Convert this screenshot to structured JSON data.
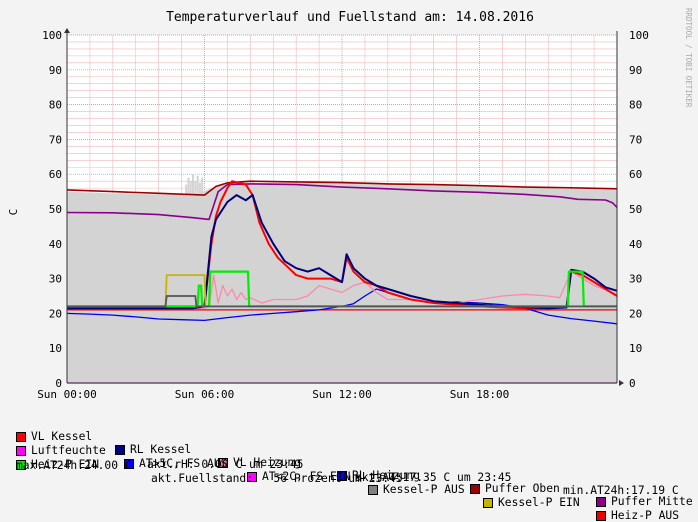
{
  "title": "Temperaturverlauf und Fuellstand am: 14.08.2016",
  "watermark": "RRDTOOL / TOBI OETIKER",
  "colors": {
    "background": "#f3f3f3",
    "plot_area": "#ffffff",
    "grid_minor": "#f2b8b8",
    "grid_major": "#e07a7a",
    "axis": "#333333"
  },
  "chart_data": {
    "type": "line",
    "ylabel": "C",
    "ylim": [
      0,
      100
    ],
    "yticks": [
      0,
      10,
      20,
      30,
      40,
      50,
      60,
      70,
      80,
      90,
      100
    ],
    "xlim": [
      0,
      24
    ],
    "xticks": [
      {
        "h": 0,
        "label": "Sun 00:00"
      },
      {
        "h": 6,
        "label": "Sun 06:00"
      },
      {
        "h": 12,
        "label": "Sun 12:00"
      },
      {
        "h": 18,
        "label": "Sun 18:00"
      }
    ],
    "fill_series": {
      "name": "Fuellstand",
      "color": "#d3d3d3",
      "points": [
        [
          0,
          55
        ],
        [
          2,
          54.5
        ],
        [
          4,
          54.2
        ],
        [
          5.5,
          53.8
        ],
        [
          6.3,
          56
        ],
        [
          6.9,
          57.5
        ],
        [
          8,
          57.6
        ],
        [
          12,
          57.5
        ],
        [
          16,
          56.8
        ],
        [
          20,
          56
        ],
        [
          24,
          55.5
        ]
      ]
    },
    "series": [
      {
        "name": "Puffer Oben",
        "color": "#9b0000",
        "width": 1.6,
        "points": [
          [
            0,
            55.5
          ],
          [
            2,
            55
          ],
          [
            4,
            54.5
          ],
          [
            6,
            54
          ],
          [
            6.5,
            56.5
          ],
          [
            7,
            57.5
          ],
          [
            8,
            58
          ],
          [
            10,
            57.8
          ],
          [
            12,
            57.6
          ],
          [
            14,
            57.2
          ],
          [
            16,
            57
          ],
          [
            18,
            56.7
          ],
          [
            20,
            56.3
          ],
          [
            22,
            56.1
          ],
          [
            24,
            55.8
          ]
        ]
      },
      {
        "name": "Puffer Mitte",
        "color": "#8b008b",
        "width": 1.6,
        "points": [
          [
            0,
            49
          ],
          [
            2,
            48.9
          ],
          [
            4,
            48.4
          ],
          [
            5.5,
            47.5
          ],
          [
            6.2,
            47
          ],
          [
            6.6,
            55
          ],
          [
            7,
            57
          ],
          [
            8,
            57.2
          ],
          [
            10,
            57
          ],
          [
            12,
            56.3
          ],
          [
            14,
            55.8
          ],
          [
            16,
            55.2
          ],
          [
            18,
            54.8
          ],
          [
            20,
            54.2
          ],
          [
            21.5,
            53.5
          ],
          [
            22.3,
            52.8
          ],
          [
            23.5,
            52.6
          ],
          [
            23.8,
            51.8
          ],
          [
            24,
            50.5
          ]
        ]
      },
      {
        "name": "Luftfeuchte",
        "color": "#ff00ff",
        "width": 1.2,
        "points": [
          [
            0,
            0
          ],
          [
            24,
            0
          ]
        ]
      },
      {
        "name": "Heiz-P AUS",
        "color": "#ee0000",
        "width": 1.2,
        "points": [
          [
            0,
            21
          ],
          [
            6,
            21
          ],
          [
            6.05,
            21
          ],
          [
            24,
            21
          ]
        ]
      },
      {
        "name": "RL Heizung",
        "color": "#0000ee",
        "width": 1.3,
        "points": [
          [
            0,
            20
          ],
          [
            1,
            19.8
          ],
          [
            2,
            19.5
          ],
          [
            3,
            19
          ],
          [
            4,
            18.4
          ],
          [
            5,
            18.2
          ],
          [
            6,
            18
          ],
          [
            7,
            18.8
          ],
          [
            8,
            19.5
          ],
          [
            9,
            20
          ],
          [
            10,
            20.5
          ],
          [
            11,
            21
          ],
          [
            12,
            22
          ],
          [
            12.5,
            22.8
          ],
          [
            13,
            25
          ],
          [
            13.5,
            27
          ],
          [
            14,
            26
          ],
          [
            14.5,
            25
          ],
          [
            15,
            24
          ],
          [
            16,
            23
          ],
          [
            17,
            23.3
          ],
          [
            18,
            23
          ],
          [
            19,
            22.5
          ],
          [
            20,
            21.5
          ],
          [
            21,
            19.5
          ],
          [
            22,
            18.5
          ],
          [
            23,
            17.8
          ],
          [
            24,
            17
          ]
        ]
      },
      {
        "name": "VL Heizung",
        "color": "#ff88aa",
        "width": 1.3,
        "points": [
          [
            0,
            21.5
          ],
          [
            6,
            21.5
          ],
          [
            6.2,
            22
          ],
          [
            6.4,
            31
          ],
          [
            6.6,
            23
          ],
          [
            6.8,
            28
          ],
          [
            7,
            25
          ],
          [
            7.2,
            27
          ],
          [
            7.4,
            24
          ],
          [
            7.6,
            26
          ],
          [
            7.8,
            24
          ],
          [
            8,
            24.5
          ],
          [
            8.5,
            23
          ],
          [
            9,
            24
          ],
          [
            10,
            24
          ],
          [
            10.5,
            25
          ],
          [
            11,
            28
          ],
          [
            11.5,
            27
          ],
          [
            12,
            26
          ],
          [
            12.5,
            28
          ],
          [
            13,
            29
          ],
          [
            13.5,
            26
          ],
          [
            14,
            24
          ],
          [
            15,
            24
          ],
          [
            16,
            23
          ],
          [
            17,
            23
          ],
          [
            18,
            24
          ],
          [
            19,
            25
          ],
          [
            20,
            25.5
          ],
          [
            21,
            25
          ],
          [
            21.5,
            24.5
          ],
          [
            22,
            32
          ],
          [
            22.5,
            30
          ],
          [
            23,
            28
          ],
          [
            24,
            25.5
          ]
        ]
      },
      {
        "name": "VL Kessel",
        "color": "#ff0000",
        "width": 2,
        "points": [
          [
            0,
            21.5
          ],
          [
            5.5,
            21.5
          ],
          [
            5.8,
            22
          ],
          [
            6,
            22
          ],
          [
            6.3,
            40
          ],
          [
            6.5,
            48
          ],
          [
            6.7,
            52
          ],
          [
            7,
            56
          ],
          [
            7.2,
            58
          ],
          [
            7.5,
            57.5
          ],
          [
            7.8,
            57
          ],
          [
            8.1,
            54
          ],
          [
            8.4,
            46
          ],
          [
            8.8,
            40
          ],
          [
            9.2,
            36
          ],
          [
            10,
            31
          ],
          [
            10.5,
            30
          ],
          [
            11,
            30
          ],
          [
            11.5,
            30
          ],
          [
            12,
            29
          ],
          [
            12.2,
            36
          ],
          [
            12.5,
            32
          ],
          [
            13,
            29
          ],
          [
            13.5,
            28
          ],
          [
            14,
            26
          ],
          [
            15,
            24
          ],
          [
            16,
            23
          ],
          [
            17,
            22.5
          ],
          [
            18,
            22
          ],
          [
            19,
            21.7
          ],
          [
            20,
            21.5
          ],
          [
            21,
            21.5
          ],
          [
            21.8,
            22
          ],
          [
            22,
            32
          ],
          [
            22.5,
            31
          ],
          [
            23,
            29
          ],
          [
            23.5,
            27
          ],
          [
            24,
            25
          ]
        ]
      },
      {
        "name": "RL Kessel",
        "color": "#00007a",
        "width": 2,
        "points": [
          [
            0,
            21.5
          ],
          [
            5.5,
            21.5
          ],
          [
            6,
            22
          ],
          [
            6.3,
            42
          ],
          [
            6.5,
            47
          ],
          [
            6.8,
            50
          ],
          [
            7,
            52
          ],
          [
            7.4,
            54
          ],
          [
            7.8,
            52.5
          ],
          [
            8.1,
            54
          ],
          [
            8.5,
            46
          ],
          [
            9,
            40
          ],
          [
            9.5,
            35
          ],
          [
            10,
            33
          ],
          [
            10.5,
            32
          ],
          [
            11,
            33
          ],
          [
            11.5,
            31
          ],
          [
            12,
            29
          ],
          [
            12.2,
            37
          ],
          [
            12.5,
            33
          ],
          [
            13,
            30
          ],
          [
            13.5,
            28
          ],
          [
            14,
            27
          ],
          [
            15,
            25
          ],
          [
            16,
            23.5
          ],
          [
            17,
            23
          ],
          [
            18,
            22.5
          ],
          [
            19,
            22
          ],
          [
            20,
            21.8
          ],
          [
            21,
            21.5
          ],
          [
            21.8,
            21.7
          ],
          [
            22,
            32.5
          ],
          [
            22.5,
            32
          ],
          [
            23,
            30
          ],
          [
            23.5,
            27.5
          ],
          [
            24,
            26.5
          ]
        ]
      },
      {
        "name": "Heiz-P EIN",
        "color": "#00ee00",
        "width": 2.2,
        "points": [
          [
            0,
            22
          ],
          [
            5.7,
            22
          ],
          [
            5.75,
            28
          ],
          [
            5.85,
            28
          ],
          [
            5.9,
            22
          ],
          [
            6.2,
            22
          ],
          [
            6.25,
            32
          ],
          [
            7.9,
            32
          ],
          [
            7.95,
            22
          ],
          [
            20,
            22
          ],
          [
            21.85,
            22
          ],
          [
            21.9,
            32
          ],
          [
            22.5,
            32
          ],
          [
            22.55,
            22
          ],
          [
            24,
            22
          ]
        ]
      },
      {
        "name": "Kessel-P EIN",
        "color": "#c8b400",
        "width": 1.8,
        "points": [
          [
            0,
            22
          ],
          [
            4.3,
            22
          ],
          [
            4.35,
            31
          ],
          [
            6,
            31
          ],
          [
            6.05,
            22
          ],
          [
            24,
            22
          ]
        ]
      },
      {
        "name": "Kessel-P AUS",
        "color": "#555555",
        "width": 1.8,
        "points": [
          [
            0,
            22
          ],
          [
            4.3,
            22
          ],
          [
            4.35,
            25
          ],
          [
            5.6,
            25
          ],
          [
            5.65,
            22
          ],
          [
            24,
            22
          ]
        ]
      }
    ]
  },
  "legend": {
    "row1": [
      {
        "label": "VL Kessel",
        "color": "#ff0000"
      },
      {
        "label": "RL Kessel",
        "color": "#000080"
      },
      {
        "label": "VL Heizung",
        "color": "#ff88aa"
      },
      {
        "label": "RL Heizung",
        "color": "#0000ee"
      },
      {
        "label": "Puffer Oben",
        "color": "#9b0000"
      },
      {
        "label": "Puffer Mitte",
        "color": "#8b008b"
      }
    ],
    "row2": [
      {
        "label": "Luftfeuchte",
        "color": "#ff00ff"
      },
      {
        "label": "AT>5C, FS AUS",
        "color": "#0000ff"
      },
      {
        "label": "AT<2C, FS EIN",
        "color": "#ff00ff"
      },
      {
        "label": "Kessel-P AUS",
        "color": "#808080"
      },
      {
        "label": "Kessel-P EIN",
        "color": "#c8b400"
      },
      {
        "label": "Heiz-P AUS",
        "color": "#ee0000"
      }
    ],
    "row3": {
      "item": {
        "label": "Heiz-P EIN",
        "color": "#00ee00"
      },
      "stat1": "akt.rH: 0.00 C um 23:45",
      "stat2": "akt.AT:17.35 C um 23:45",
      "stat3": "min.AT24h:17.19 C"
    },
    "row4": {
      "stat1": "max.AT24h:24.00 C",
      "stat2": "akt.Fuellstand:   56 Prozent um 23:45"
    }
  }
}
